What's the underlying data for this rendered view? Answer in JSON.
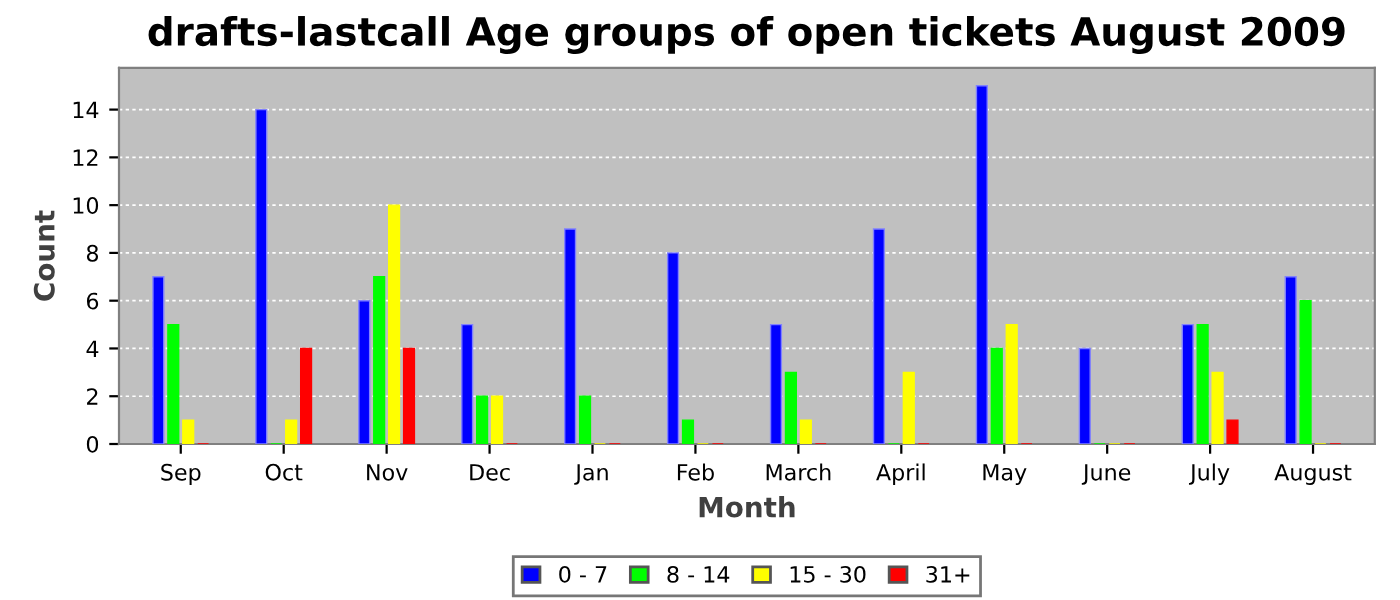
{
  "chart_data": {
    "type": "bar",
    "title": "drafts-lastcall Age groups of open tickets August 2009",
    "xlabel": "Month",
    "ylabel": "Count",
    "categories": [
      "Sep",
      "Oct",
      "Nov",
      "Dec",
      "Jan",
      "Feb",
      "March",
      "April",
      "May",
      "June",
      "July",
      "August"
    ],
    "series": [
      {
        "name": "0 - 7",
        "color": "#0000ff",
        "values": [
          7,
          14,
          6,
          5,
          9,
          8,
          5,
          9,
          15,
          4,
          5,
          7
        ]
      },
      {
        "name": "8 - 14",
        "color": "#00ff00",
        "values": [
          5,
          0,
          7,
          2,
          2,
          1,
          3,
          0,
          4,
          0,
          5,
          6
        ]
      },
      {
        "name": "15 - 30",
        "color": "#ffff00",
        "values": [
          1,
          1,
          10,
          2,
          0,
          0,
          1,
          3,
          5,
          0,
          3,
          0
        ]
      },
      {
        "name": "31+",
        "color": "#ff0000",
        "values": [
          0,
          4,
          4,
          0,
          0,
          0,
          0,
          0,
          0,
          0,
          1,
          0
        ]
      }
    ],
    "ylim": [
      0,
      15.75
    ],
    "yticks": [
      0,
      2,
      4,
      6,
      8,
      10,
      12,
      14
    ],
    "grid": "y",
    "legend": "bottom"
  }
}
